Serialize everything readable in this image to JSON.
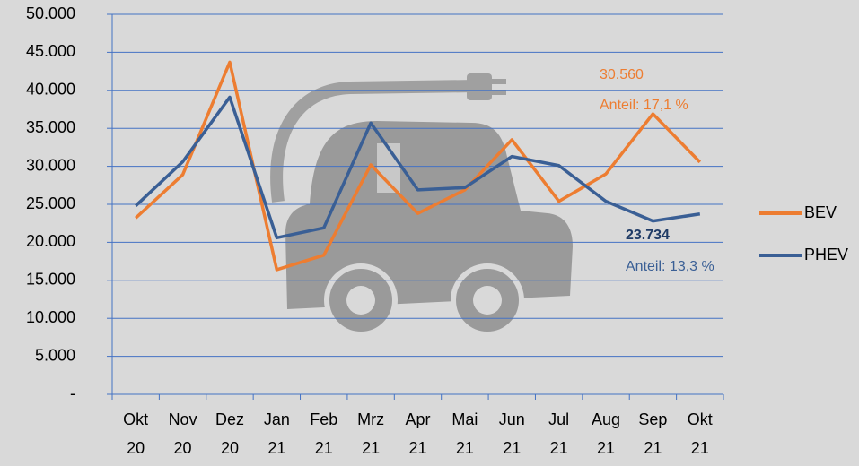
{
  "chart_data": {
    "type": "line",
    "categories": [
      [
        "Okt",
        "20"
      ],
      [
        "Nov",
        "20"
      ],
      [
        "Dez",
        "20"
      ],
      [
        "Jan",
        "21"
      ],
      [
        "Feb",
        "21"
      ],
      [
        "Mrz",
        "21"
      ],
      [
        "Apr",
        "21"
      ],
      [
        "Mai",
        "21"
      ],
      [
        "Jun",
        "21"
      ],
      [
        "Jul",
        "21"
      ],
      [
        "Aug",
        "21"
      ],
      [
        "Sep",
        "21"
      ],
      [
        "Okt",
        "21"
      ]
    ],
    "series": [
      {
        "name": "BEV",
        "color": "#ed7d31",
        "values": [
          23200,
          28900,
          43700,
          16400,
          18300,
          30200,
          23800,
          26900,
          33500,
          25400,
          29000,
          36900,
          30560
        ],
        "value_labels": [
          null,
          null,
          null,
          null,
          null,
          null,
          null,
          null,
          null,
          null,
          null,
          null,
          "30.560"
        ],
        "share_label": "Anteil: 17,1 %"
      },
      {
        "name": "PHEV",
        "color": "#3a5f95",
        "values": [
          24800,
          30600,
          39100,
          20600,
          21900,
          35700,
          26900,
          27200,
          31300,
          30100,
          25400,
          22800,
          23734
        ],
        "value_labels": [
          null,
          null,
          null,
          null,
          null,
          null,
          null,
          null,
          null,
          null,
          null,
          null,
          "23.734"
        ],
        "share_label": "Anteil: 13,3 %"
      }
    ],
    "ylim": [
      0,
      50000
    ],
    "yticks": [
      {
        "value": 0,
        "label": "-"
      },
      {
        "value": 5000,
        "label": "5.000"
      },
      {
        "value": 10000,
        "label": "10.000"
      },
      {
        "value": 15000,
        "label": "15.000"
      },
      {
        "value": 20000,
        "label": "20.000"
      },
      {
        "value": 25000,
        "label": "25.000"
      },
      {
        "value": 30000,
        "label": "30.000"
      },
      {
        "value": 35000,
        "label": "35.000"
      },
      {
        "value": 40000,
        "label": "40.000"
      },
      {
        "value": 45000,
        "label": "45.000"
      },
      {
        "value": 50000,
        "label": "50.000"
      }
    ],
    "grid": true,
    "grid_color": "#4472c4",
    "legend": "right"
  }
}
